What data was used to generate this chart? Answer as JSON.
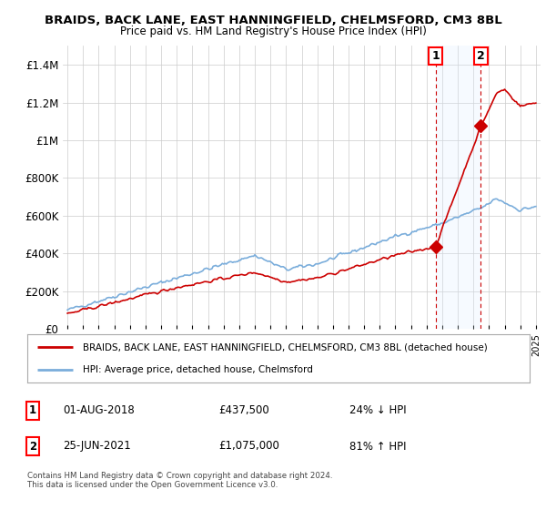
{
  "title": "BRAIDS, BACK LANE, EAST HANNINGFIELD, CHELMSFORD, CM3 8BL",
  "subtitle": "Price paid vs. HM Land Registry's House Price Index (HPI)",
  "ylim": [
    0,
    1500000
  ],
  "yticks": [
    0,
    200000,
    400000,
    600000,
    800000,
    1000000,
    1200000,
    1400000
  ],
  "ytick_labels": [
    "£0",
    "£200K",
    "£400K",
    "£600K",
    "£800K",
    "£1M",
    "£1.2M",
    "£1.4M"
  ],
  "x_start_year": 1995,
  "x_end_year": 2025,
  "hpi_color": "#7aaddb",
  "price_color": "#cc0000",
  "shade_color": "#ddeeff",
  "marker1_date": 2018.58,
  "marker1_price": 437500,
  "marker1_label": "01-AUG-2018",
  "marker1_pct": "24% ↓ HPI",
  "marker2_date": 2021.48,
  "marker2_price": 1075000,
  "marker2_label": "25-JUN-2021",
  "marker2_pct": "81% ↑ HPI",
  "legend_price_label": "BRAIDS, BACK LANE, EAST HANNINGFIELD, CHELMSFORD, CM3 8BL (detached house)",
  "legend_hpi_label": "HPI: Average price, detached house, Chelmsford",
  "copyright_text": "Contains HM Land Registry data © Crown copyright and database right 2024.\nThis data is licensed under the Open Government Licence v3.0.",
  "background_color": "#ffffff",
  "grid_color": "#cccccc"
}
